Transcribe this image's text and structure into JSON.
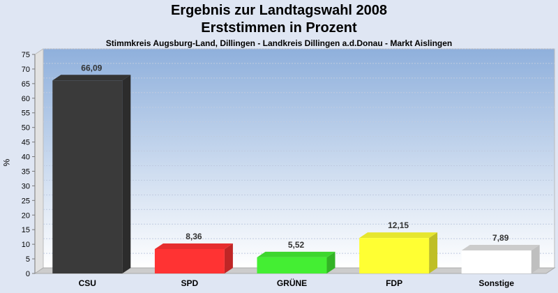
{
  "chart_data": {
    "type": "bar",
    "title": "Ergebnis zur Landtagswahl 2008",
    "title2": "Erststimmen in Prozent",
    "subtitle": "Stimmkreis Augsburg-Land, Dillingen - Landkreis Dillingen a.d.Donau - Markt Aislingen",
    "ylabel": "%",
    "ylim": [
      0,
      75
    ],
    "yticks": [
      0,
      5,
      10,
      15,
      20,
      25,
      30,
      35,
      40,
      45,
      50,
      55,
      60,
      65,
      70,
      75
    ],
    "grid": true,
    "categories": [
      "CSU",
      "SPD",
      "GRÜNE",
      "FDP",
      "Sonstige"
    ],
    "values": [
      66.09,
      8.36,
      5.52,
      12.15,
      7.89
    ],
    "value_labels": [
      "66,09",
      "8,36",
      "5,52",
      "12,15",
      "7,89"
    ],
    "colors": [
      "#3a3a3a",
      "#ff3333",
      "#44ee33",
      "#ffff33",
      "#ffffff"
    ]
  }
}
